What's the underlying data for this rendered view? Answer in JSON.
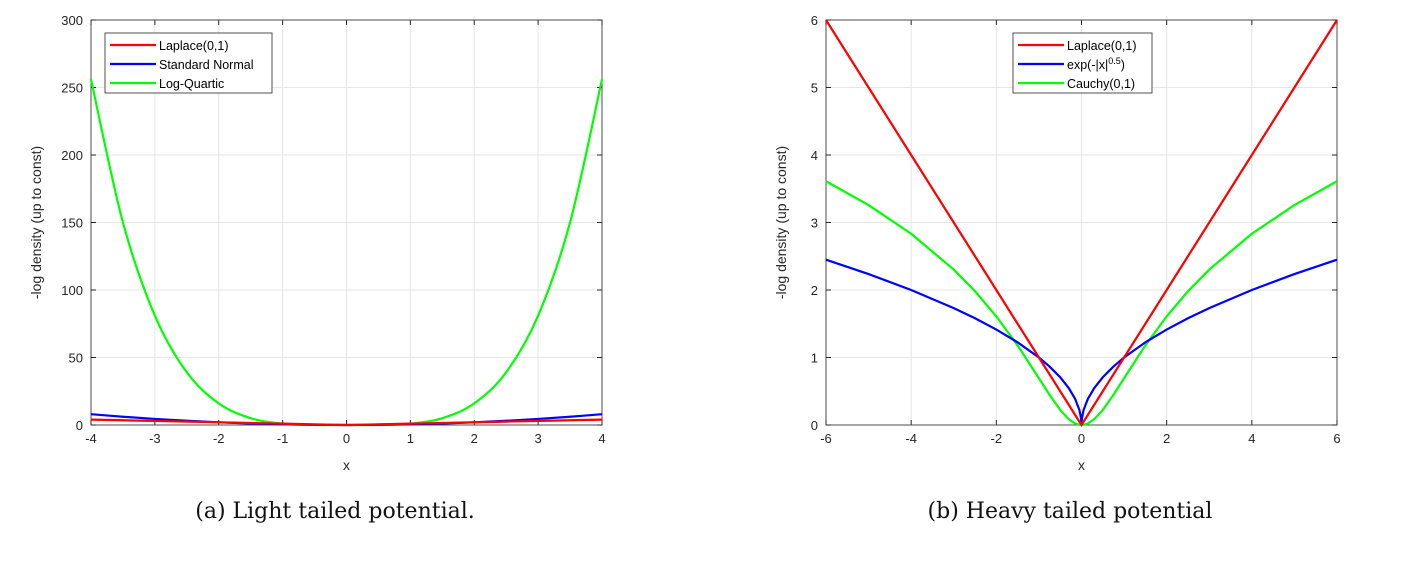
{
  "chart_data": [
    {
      "type": "line",
      "caption": "(a) Light tailed potential.",
      "xlabel": "x",
      "ylabel": "-log density (up to const)",
      "xlim": [
        -4,
        4
      ],
      "ylim": [
        0,
        300
      ],
      "xticks": [
        -4,
        -3,
        -2,
        -1,
        0,
        1,
        2,
        3,
        4
      ],
      "yticks": [
        0,
        50,
        100,
        150,
        200,
        250,
        300
      ],
      "grid": true,
      "legend": "top-left",
      "x": [
        -4,
        -3.5,
        -3,
        -2.5,
        -2,
        -1.5,
        -1,
        -0.5,
        0,
        0.5,
        1,
        1.5,
        2,
        2.5,
        3,
        3.5,
        4
      ],
      "series": [
        {
          "name": "Laplace(0,1)",
          "color": "#ff0000",
          "values": [
            4,
            3.5,
            3,
            2.5,
            2,
            1.5,
            1,
            0.5,
            0,
            0.5,
            1,
            1.5,
            2,
            2.5,
            3,
            3.5,
            4
          ]
        },
        {
          "name": "Standard Normal",
          "color": "#0000ff",
          "values": [
            8,
            6.125,
            4.5,
            3.125,
            2,
            1.125,
            0.5,
            0.125,
            0,
            0.125,
            0.5,
            1.125,
            2,
            3.125,
            4.5,
            6.125,
            8
          ]
        },
        {
          "name": "Log-Quartic",
          "color": "#00ff00",
          "values": [
            256,
            150.06,
            81,
            39.06,
            16,
            5.06,
            1,
            0.06,
            0,
            0.06,
            1,
            5.06,
            16,
            39.06,
            81,
            150.06,
            256
          ]
        }
      ]
    },
    {
      "type": "line",
      "caption": "(b) Heavy tailed potential",
      "xlabel": "x",
      "ylabel": "-log density (up to const)",
      "xlim": [
        -6,
        6
      ],
      "ylim": [
        0,
        6
      ],
      "xticks": [
        -6,
        -4,
        -2,
        0,
        2,
        4,
        6
      ],
      "yticks": [
        0,
        1,
        2,
        3,
        4,
        5,
        6
      ],
      "grid": true,
      "legend": "top-center",
      "x": [
        -6,
        -5,
        -4,
        -3,
        -2.5,
        -2,
        -1.5,
        -1,
        -0.75,
        -0.5,
        -0.3,
        -0.15,
        -0.05,
        -0.01,
        0,
        0.01,
        0.05,
        0.15,
        0.3,
        0.5,
        0.75,
        1,
        1.5,
        2,
        2.5,
        3,
        4,
        5,
        6
      ],
      "series": [
        {
          "name": "Laplace(0,1)",
          "color": "#ff0000",
          "values": [
            6,
            5,
            4,
            3,
            2.5,
            2,
            1.5,
            1,
            0.75,
            0.5,
            0.3,
            0.15,
            0.05,
            0.01,
            0,
            0.01,
            0.05,
            0.15,
            0.3,
            0.5,
            0.75,
            1,
            1.5,
            2,
            2.5,
            3,
            4,
            5,
            6
          ]
        },
        {
          "name": "exp(-|x|",
          "sup": "0.5",
          ")": ")",
          "color": "#0000ff",
          "values": [
            2.449,
            2.236,
            2,
            1.732,
            1.581,
            1.414,
            1.225,
            1,
            0.866,
            0.707,
            0.548,
            0.387,
            0.224,
            0.1,
            0,
            0.1,
            0.224,
            0.387,
            0.548,
            0.707,
            0.866,
            1,
            1.225,
            1.414,
            1.581,
            1.732,
            2,
            2.236,
            2.449
          ]
        },
        {
          "name": "Cauchy(0,1)",
          "color": "#00ff00",
          "values": [
            3.611,
            3.258,
            2.833,
            2.303,
            1.981,
            1.609,
            1.179,
            0.693,
            0.446,
            0.223,
            0.086,
            0.022,
            0.0025,
            0.0001,
            0,
            0.0001,
            0.0025,
            0.022,
            0.086,
            0.223,
            0.446,
            0.693,
            1.179,
            1.609,
            1.981,
            2.303,
            2.833,
            3.258,
            3.611
          ]
        }
      ]
    }
  ]
}
